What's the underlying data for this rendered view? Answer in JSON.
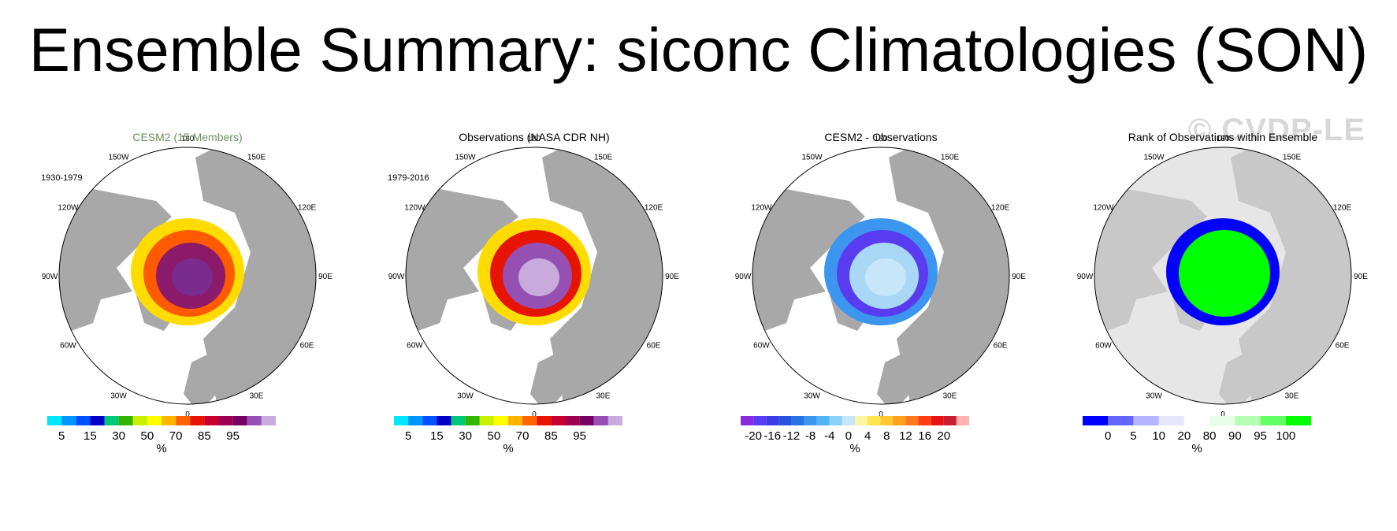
{
  "title": "Ensemble Summary: siconc Climatologies (SON)",
  "watermark": "© CVDP-LE",
  "lon_labels": [
    "180",
    "150E",
    "120E",
    "90E",
    "60E",
    "30E",
    "0",
    "30W",
    "60W",
    "90W",
    "120W",
    "150W"
  ],
  "panels": [
    {
      "title": "CESM2 (15 Members)",
      "period": "1930-1979",
      "colorbar": {
        "colors": [
          "#00e6ff",
          "#0096ff",
          "#0050ff",
          "#0000c8",
          "#00c878",
          "#32b400",
          "#c8f000",
          "#ffff00",
          "#ffb400",
          "#ff6400",
          "#e61400",
          "#c80032",
          "#a00050",
          "#780064",
          "#9650b4",
          "#c8aadc"
        ],
        "ticks": [
          "5",
          "15",
          "30",
          "50",
          "70",
          "85",
          "95"
        ],
        "unit": "%"
      },
      "fill": {
        "outer": "#ffdc00",
        "mid": "#ff5a00",
        "inner": "#8c1a6a",
        "core": "#7a2c8e"
      }
    },
    {
      "title": "Observations (NASA CDR NH)",
      "period": "1979-2016",
      "colorbar": {
        "colors": [
          "#00e6ff",
          "#0096ff",
          "#0050ff",
          "#0000c8",
          "#00c878",
          "#32b400",
          "#c8f000",
          "#ffff00",
          "#ffb400",
          "#ff6400",
          "#e61400",
          "#c80032",
          "#a00050",
          "#780064",
          "#9650b4",
          "#c8aadc"
        ],
        "ticks": [
          "5",
          "15",
          "30",
          "50",
          "70",
          "85",
          "95"
        ],
        "unit": "%"
      },
      "fill": {
        "outer": "#ffdc00",
        "mid": "#e61400",
        "inner": "#9650b4",
        "core": "#c8aadc"
      }
    },
    {
      "title": "CESM2 - Observations",
      "period": "",
      "colorbar": {
        "colors": [
          "#8a2be2",
          "#5a3cf0",
          "#3c3ce6",
          "#2850dc",
          "#2873e6",
          "#3c96f0",
          "#50b4f5",
          "#8cd2f5",
          "#c8e6fa",
          "#fff5a0",
          "#ffe650",
          "#ffc832",
          "#ffa01e",
          "#ff781e",
          "#ff3c14",
          "#e61414",
          "#c81e32",
          "#ffb4b4"
        ],
        "ticks": [
          "-20",
          "-16",
          "-12",
          "-8",
          "-4",
          "0",
          "4",
          "8",
          "12",
          "16",
          "20"
        ],
        "unit": "%"
      },
      "fill": {
        "outer": "#3c96f0",
        "mid": "#5a3cf0",
        "inner": "#a8d8f5",
        "core": "#c8e6fa"
      }
    },
    {
      "title": "Rank of Observations within Ensemble",
      "period": "",
      "colorbar": {
        "colors": [
          "#0000ff",
          "#6464ff",
          "#b4b4ff",
          "#e6e6ff",
          "#ffffff",
          "#e6ffe6",
          "#b4ffb4",
          "#64ff64",
          "#00ff00"
        ],
        "ticks": [
          "0",
          "5",
          "10",
          "20",
          "80",
          "90",
          "95",
          "100"
        ],
        "unit": "%"
      },
      "fill": {
        "outer": "#0000ff",
        "mid": "#00ff00",
        "inner": "#00ff00",
        "core": "#00ff00"
      }
    }
  ]
}
